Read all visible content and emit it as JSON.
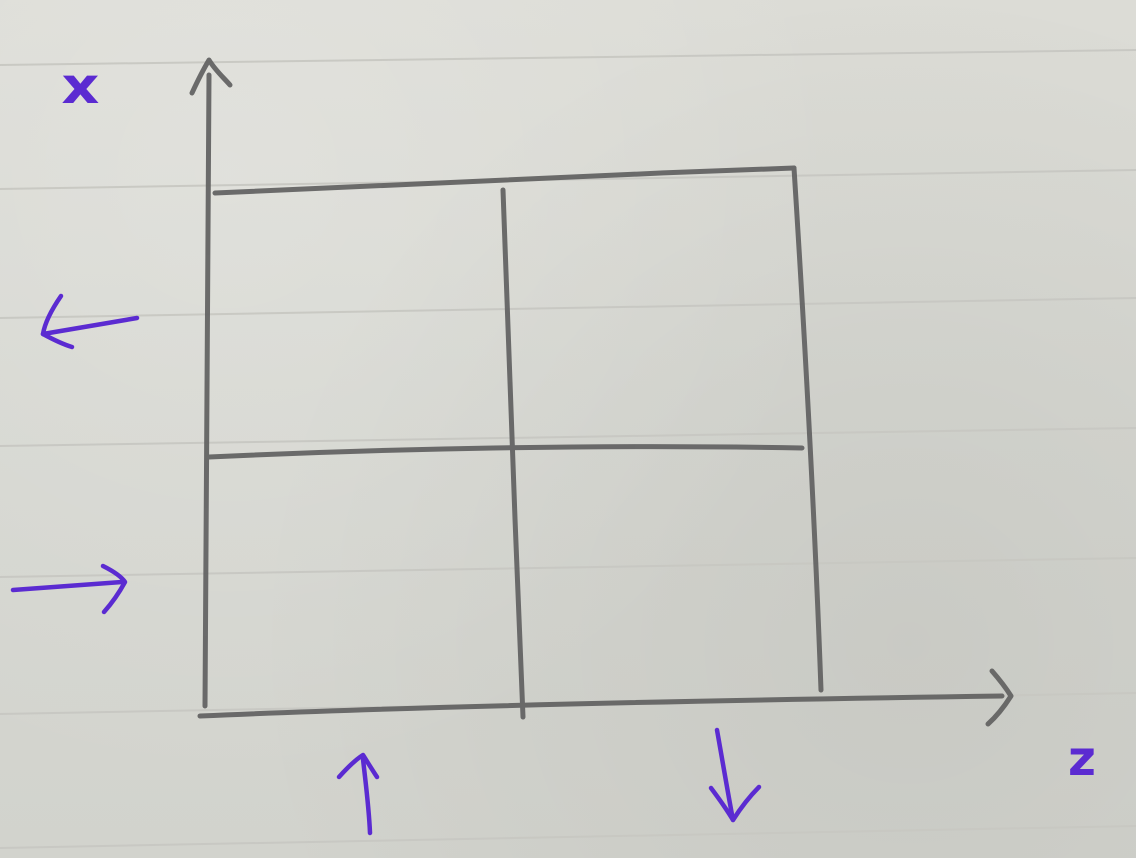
{
  "diagram": {
    "axis_labels": {
      "vertical": "x",
      "horizontal": "z"
    },
    "direction_arrows": [
      {
        "name": "left-arrow",
        "direction": "left"
      },
      {
        "name": "right-arrow",
        "direction": "right"
      },
      {
        "name": "up-arrow",
        "direction": "up"
      },
      {
        "name": "down-arrow",
        "direction": "down"
      }
    ],
    "grid": {
      "rows": 2,
      "columns": 2
    },
    "colors": {
      "paper": "#d9d9d4",
      "ruled_line": "#c7c7c2",
      "pencil": "#646464",
      "ink": "#5b2bd1"
    }
  }
}
